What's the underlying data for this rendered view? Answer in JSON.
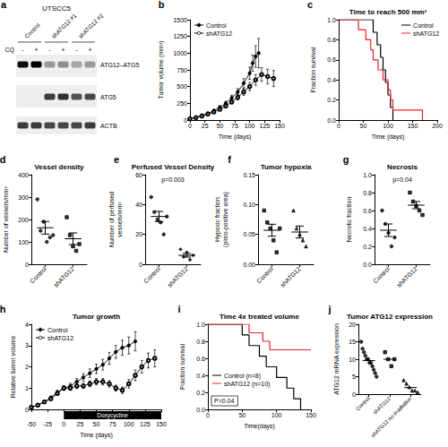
{
  "blot": {
    "panel": "a",
    "title": "UTSCC5",
    "treatment_label": "CQ",
    "lanes": [
      "-",
      "+",
      "-",
      "+",
      "-",
      "+"
    ],
    "groups": [
      "Control",
      "shATG12 #1",
      "shATG12 #2"
    ],
    "bands": [
      {
        "label": "ATG12–ATG5",
        "intensity": [
          0.95,
          1.0,
          0.35,
          0.4,
          0.3,
          0.35
        ]
      },
      {
        "label": "ATG5",
        "intensity": [
          0,
          0,
          0.75,
          0.8,
          0.65,
          0.7
        ]
      },
      {
        "label": "ACTB",
        "intensity": [
          0.75,
          0.75,
          0.7,
          0.7,
          0.7,
          0.75
        ]
      }
    ]
  },
  "chart_data": [
    {
      "panel": "b",
      "type": "line",
      "x_label": "Time (days)",
      "y_label": "Tumor volume (mm³)",
      "xlim": [
        0,
        150
      ],
      "xticks": [
        0,
        25,
        50,
        75,
        100,
        125,
        150
      ],
      "ylim": [
        0,
        1500
      ],
      "yticks": [
        0,
        250,
        500,
        750,
        1000,
        1250,
        1500
      ],
      "grid": false,
      "legend": "upper left",
      "series": [
        {
          "name": "Control",
          "color": "#000000",
          "marker": "circle",
          "x": [
            0,
            10,
            20,
            30,
            40,
            50,
            60,
            70,
            80,
            90,
            100,
            105,
            110,
            115
          ],
          "values": [
            20,
            40,
            70,
            100,
            140,
            190,
            250,
            330,
            420,
            550,
            700,
            850,
            950,
            1000
          ],
          "error": [
            5,
            8,
            12,
            15,
            20,
            25,
            30,
            40,
            50,
            70,
            90,
            120,
            160,
            220
          ]
        },
        {
          "name": "shATG12",
          "color": "#000000",
          "marker": "open_circle",
          "x": [
            0,
            10,
            20,
            30,
            40,
            50,
            60,
            70,
            80,
            90,
            100,
            110,
            120,
            130,
            140
          ],
          "values": [
            20,
            35,
            60,
            90,
            120,
            160,
            210,
            270,
            340,
            420,
            500,
            600,
            680,
            650,
            620
          ],
          "error": [
            5,
            6,
            10,
            12,
            15,
            20,
            25,
            30,
            40,
            50,
            60,
            80,
            100,
            110,
            120
          ]
        }
      ]
    },
    {
      "panel": "c",
      "type": "step",
      "title": "Time to reach 500 mm³",
      "x_label": "Time (days)",
      "y_label": "Fraction survival",
      "xlim": [
        0,
        200
      ],
      "xticks": [
        0,
        50,
        100,
        150,
        200
      ],
      "ylim": [
        0,
        1
      ],
      "yticks": [
        {
          "value": 0,
          "label": "0.0"
        },
        0.2,
        0.4,
        0.6,
        0.8,
        {
          "value": 1,
          "label": "1.0"
        }
      ],
      "grid": false,
      "legend": "upper right",
      "series": [
        {
          "name": "Control",
          "color": "#000000",
          "x": [
            0,
            70,
            78,
            85,
            90,
            95,
            100,
            105,
            110
          ],
          "values": [
            1,
            0.875,
            0.75,
            0.625,
            0.5,
            0.375,
            0.25,
            0.125,
            0
          ]
        },
        {
          "name": "shATG12",
          "color": "#e8202a",
          "x": [
            0,
            40,
            55,
            65,
            70,
            80,
            90,
            100,
            105,
            110,
            170
          ],
          "values": [
            1,
            0.9,
            0.8,
            0.7,
            0.6,
            0.5,
            0.4,
            0.3,
            0.2,
            0.1,
            0
          ]
        }
      ]
    },
    {
      "panel": "d",
      "type": "dot",
      "title": "Vessel density",
      "y_label": "Number of vessels/mm²",
      "categories": [
        "Control",
        "shATG12"
      ],
      "ylim": [
        0,
        400
      ],
      "yticks": [
        0,
        100,
        200,
        300,
        400
      ],
      "grid": false,
      "color": "#000000",
      "markers": [
        "circle",
        "square"
      ],
      "points": [
        [
          290,
          150,
          190,
          100,
          120,
          130
        ],
        [
          210,
          130,
          80,
          60,
          90
        ]
      ],
      "means": [
        163,
        114
      ],
      "errors": [
        28,
        26
      ]
    },
    {
      "panel": "e",
      "type": "dot",
      "title": "Perfused Vessel Density",
      "y_label": "Number of perfused\nvessels/mm²",
      "categories": [
        "Control",
        "shATG12"
      ],
      "ylim": [
        0,
        60
      ],
      "yticks": [
        0,
        20,
        40,
        60
      ],
      "grid": false,
      "color": "#000000",
      "markers": [
        "circle",
        "diamond"
      ],
      "points": [
        [
          45,
          35,
          30,
          28,
          20,
          32
        ],
        [
          10,
          5,
          8,
          3,
          6
        ]
      ],
      "means": [
        32,
        6
      ],
      "errors": [
        3.4,
        1.2
      ],
      "annotation": "p=0.003"
    },
    {
      "panel": "f",
      "type": "dot",
      "title": "Tumor hypoxia",
      "y_label": "Hypoxic fraction\n(pimo-positive area)",
      "categories": [
        "Control",
        "shATG12"
      ],
      "ylim": [
        0,
        0.15
      ],
      "yticks": [
        {
          "value": 0,
          "label": "0.00"
        },
        {
          "value": 0.05,
          "label": "0.05"
        },
        {
          "value": 0.1,
          "label": "0.10"
        },
        {
          "value": 0.15,
          "label": "0.15"
        }
      ],
      "grid": false,
      "color": "#000000",
      "markers": [
        "square",
        "triangle"
      ],
      "points": [
        [
          0.09,
          0.07,
          0.06,
          0.04,
          0.02,
          0.06
        ],
        [
          0.09,
          0.06,
          0.05,
          0.04,
          0.03
        ]
      ],
      "means": [
        0.057,
        0.054
      ],
      "errors": [
        0.01,
        0.01
      ]
    },
    {
      "panel": "g",
      "type": "dot",
      "title": "Necrosis",
      "y_label": "Necrotic fraction",
      "categories": [
        "Control",
        "shATG12"
      ],
      "ylim": [
        0,
        1
      ],
      "yticks": [
        {
          "value": 0,
          "label": "0.0"
        },
        0.2,
        0.4,
        0.6,
        0.8,
        {
          "value": 1,
          "label": "1.0"
        }
      ],
      "grid": false,
      "color": "#000000",
      "markers": [
        "circle",
        "square"
      ],
      "points": [
        [
          0.6,
          0.45,
          0.35,
          0.2,
          0.3
        ],
        [
          0.8,
          0.7,
          0.65,
          0.6,
          0.55
        ]
      ],
      "means": [
        0.38,
        0.66
      ],
      "errors": [
        0.07,
        0.04
      ],
      "annotation": "p=0.04"
    },
    {
      "panel": "h",
      "type": "line",
      "title": "Tumor growth",
      "x_label": "Time (days)",
      "y_label": "Relative tumor volume",
      "xlim": [
        -50,
        150
      ],
      "xticks": [
        -50,
        -25,
        0,
        25,
        50,
        75,
        100,
        125,
        150
      ],
      "ylim": [
        0,
        4
      ],
      "yticks": [
        0,
        1,
        2,
        3,
        4
      ],
      "grid": false,
      "legend": "upper left",
      "treatment": {
        "label": "Doxycycline",
        "start": 0,
        "end": 150
      },
      "series": [
        {
          "name": "Control",
          "color": "#000000",
          "marker": "circle",
          "x": [
            -50,
            -40,
            -30,
            -20,
            -10,
            0,
            10,
            20,
            30,
            40,
            50,
            60,
            70,
            80,
            90,
            100,
            110
          ],
          "values": [
            0.1,
            0.2,
            0.35,
            0.55,
            0.8,
            1.0,
            1.1,
            1.3,
            1.5,
            1.7,
            1.9,
            2.1,
            2.4,
            2.7,
            2.9,
            3.0,
            3.2
          ],
          "error": [
            0.02,
            0.04,
            0.06,
            0.08,
            0.1,
            0.1,
            0.12,
            0.15,
            0.18,
            0.2,
            0.22,
            0.25,
            0.28,
            0.3,
            0.35,
            0.4,
            0.45
          ]
        },
        {
          "name": "shATG12",
          "color": "#000000",
          "marker": "open_circle",
          "x": [
            -50,
            -40,
            -30,
            -20,
            -10,
            0,
            10,
            20,
            30,
            40,
            50,
            60,
            70,
            80,
            90,
            100,
            110,
            120,
            130,
            140
          ],
          "values": [
            0.1,
            0.2,
            0.35,
            0.5,
            0.75,
            1.0,
            1.0,
            1.1,
            1.1,
            1.2,
            1.3,
            1.3,
            1.2,
            1.0,
            0.9,
            1.2,
            1.6,
            2.0,
            2.3,
            2.4
          ],
          "error": [
            0.02,
            0.03,
            0.05,
            0.07,
            0.09,
            0.1,
            0.1,
            0.12,
            0.12,
            0.14,
            0.15,
            0.15,
            0.15,
            0.14,
            0.15,
            0.2,
            0.25,
            0.3,
            0.35,
            0.4
          ]
        }
      ]
    },
    {
      "panel": "i",
      "type": "step",
      "title": "Time 4x treated volume",
      "x_label": "Time(days)",
      "y_label": "Fraction survival",
      "xlim": [
        0,
        150
      ],
      "xticks": [
        0,
        50,
        100,
        150
      ],
      "ylim": [
        0,
        1
      ],
      "yticks": [
        {
          "value": 0,
          "label": "0.0"
        },
        0.2,
        0.4,
        0.6,
        0.8,
        {
          "value": 1,
          "label": "1.0"
        }
      ],
      "grid": false,
      "legend": "left",
      "annotation": "P=0.04",
      "series": [
        {
          "name": "Control (n=8)",
          "color": "#000000",
          "x": [
            0,
            50,
            60,
            75,
            85,
            100,
            115,
            125,
            135
          ],
          "values": [
            1,
            0.875,
            0.75,
            0.625,
            0.5,
            0.375,
            0.25,
            0.125,
            0
          ]
        },
        {
          "name": "shATG12 (n=10)",
          "color": "#e8202a",
          "x": [
            0,
            60,
            80,
            90,
            150
          ],
          "values": [
            1,
            0.9,
            0.8,
            0.7,
            0.7
          ]
        }
      ]
    },
    {
      "panel": "j",
      "type": "dot",
      "title": "Tumor ATG12 expression",
      "y_label": "ATG12 mRNA expression",
      "categories": [
        "Control",
        "shATG12",
        "shATG12 no irradiation"
      ],
      "ylim": [
        0,
        20
      ],
      "yticks": [
        0,
        5,
        10,
        15,
        20
      ],
      "grid": false,
      "color": "#000000",
      "markers": [
        "circle",
        "square",
        "triangle"
      ],
      "points": [
        [
          15,
          13,
          12,
          11,
          10,
          10,
          9,
          9,
          8,
          7,
          6,
          5
        ],
        [
          12,
          10,
          8,
          10
        ],
        [
          4,
          3,
          2,
          1,
          1,
          0.5
        ]
      ],
      "means": [
        9.6,
        10,
        1.9
      ]
    }
  ]
}
